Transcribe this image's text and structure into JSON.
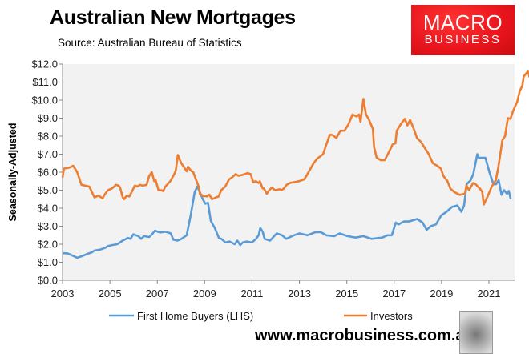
{
  "header": {
    "title": "Australian New Mortgages",
    "subtitle": "Source: Australian Bureau of Statistics"
  },
  "logo": {
    "line1": "MACRO",
    "line2": "BUSINESS",
    "color": "#e8141c"
  },
  "footer": {
    "url": "www.macrobusiness.com.au",
    "badge_icon": "wolf-icon"
  },
  "chart_data": {
    "type": "line",
    "title": "Australian New Mortgages",
    "ylabel": "Seasonally-Adjusted",
    "xlim": [
      2003,
      2022.1
    ],
    "ylim": [
      0,
      12
    ],
    "xticks": [
      2003,
      2005,
      2007,
      2009,
      2011,
      2013,
      2015,
      2017,
      2019,
      2021
    ],
    "yticks": [
      "$0.0",
      "$1.0",
      "$2.0",
      "$3.0",
      "$4.0",
      "$5.0",
      "$6.0",
      "$7.0",
      "$8.0",
      "$9.0",
      "$10.0",
      "$11.0",
      "$12.0"
    ],
    "grid": false,
    "legend": "bottom",
    "background": "#f2f2f2",
    "series": [
      {
        "name": "First Home Buyers (LHS)",
        "color": "#5b9bd5",
        "points": [
          [
            2003.0,
            1.5
          ],
          [
            2003.2,
            1.5
          ],
          [
            2003.45,
            1.35
          ],
          [
            2003.62,
            1.25
          ],
          [
            2003.85,
            1.35
          ],
          [
            2004.02,
            1.45
          ],
          [
            2004.24,
            1.55
          ],
          [
            2004.35,
            1.65
          ],
          [
            2004.58,
            1.7
          ],
          [
            2004.8,
            1.8
          ],
          [
            2004.92,
            1.9
          ],
          [
            2005.09,
            1.95
          ],
          [
            2005.31,
            2.0
          ],
          [
            2005.54,
            2.2
          ],
          [
            2005.76,
            2.35
          ],
          [
            2005.87,
            2.3
          ],
          [
            2005.99,
            2.55
          ],
          [
            2006.1,
            2.5
          ],
          [
            2006.2,
            2.45
          ],
          [
            2006.32,
            2.3
          ],
          [
            2006.44,
            2.45
          ],
          [
            2006.66,
            2.4
          ],
          [
            2006.78,
            2.55
          ],
          [
            2006.9,
            2.75
          ],
          [
            2007.12,
            2.65
          ],
          [
            2007.34,
            2.7
          ],
          [
            2007.57,
            2.6
          ],
          [
            2007.68,
            2.25
          ],
          [
            2007.85,
            2.2
          ],
          [
            2008.02,
            2.3
          ],
          [
            2008.24,
            2.5
          ],
          [
            2008.41,
            3.6
          ],
          [
            2008.58,
            4.9
          ],
          [
            2008.69,
            5.2
          ],
          [
            2008.8,
            4.9
          ],
          [
            2008.92,
            4.5
          ],
          [
            2009.03,
            4.25
          ],
          [
            2009.14,
            4.3
          ],
          [
            2009.26,
            3.3
          ],
          [
            2009.43,
            2.9
          ],
          [
            2009.6,
            2.35
          ],
          [
            2009.71,
            2.3
          ],
          [
            2009.88,
            2.1
          ],
          [
            2010.05,
            2.15
          ],
          [
            2010.27,
            2.0
          ],
          [
            2010.38,
            2.2
          ],
          [
            2010.5,
            1.95
          ],
          [
            2010.61,
            2.1
          ],
          [
            2010.78,
            2.15
          ],
          [
            2011.0,
            2.1
          ],
          [
            2011.17,
            2.3
          ],
          [
            2011.28,
            2.5
          ],
          [
            2011.35,
            2.9
          ],
          [
            2011.45,
            2.7
          ],
          [
            2011.53,
            2.3
          ],
          [
            2011.76,
            2.2
          ],
          [
            2012.04,
            2.6
          ],
          [
            2012.27,
            2.5
          ],
          [
            2012.44,
            2.3
          ],
          [
            2012.77,
            2.5
          ],
          [
            2013.0,
            2.6
          ],
          [
            2013.34,
            2.5
          ],
          [
            2013.68,
            2.67
          ],
          [
            2013.9,
            2.67
          ],
          [
            2014.13,
            2.5
          ],
          [
            2014.47,
            2.45
          ],
          [
            2014.7,
            2.6
          ],
          [
            2015.03,
            2.45
          ],
          [
            2015.37,
            2.37
          ],
          [
            2015.7,
            2.45
          ],
          [
            2016.05,
            2.3
          ],
          [
            2016.5,
            2.37
          ],
          [
            2016.72,
            2.5
          ],
          [
            2016.9,
            2.5
          ],
          [
            2017.07,
            3.2
          ],
          [
            2017.18,
            3.1
          ],
          [
            2017.41,
            3.26
          ],
          [
            2017.63,
            3.26
          ],
          [
            2017.97,
            3.4
          ],
          [
            2018.2,
            3.2
          ],
          [
            2018.37,
            2.8
          ],
          [
            2018.54,
            3.0
          ],
          [
            2018.76,
            3.1
          ],
          [
            2018.99,
            3.6
          ],
          [
            2019.21,
            3.8
          ],
          [
            2019.44,
            4.07
          ],
          [
            2019.67,
            4.15
          ],
          [
            2019.84,
            3.8
          ],
          [
            2019.95,
            4.15
          ],
          [
            2020.06,
            5.33
          ],
          [
            2020.23,
            5.55
          ],
          [
            2020.34,
            5.9
          ],
          [
            2020.51,
            7.0
          ],
          [
            2020.57,
            6.8
          ],
          [
            2020.85,
            6.8
          ],
          [
            2021.02,
            6.0
          ],
          [
            2021.19,
            5.33
          ],
          [
            2021.3,
            5.33
          ],
          [
            2021.41,
            5.55
          ],
          [
            2021.53,
            4.74
          ],
          [
            2021.64,
            5.0
          ],
          [
            2021.76,
            4.8
          ],
          [
            2021.84,
            4.96
          ],
          [
            2021.92,
            4.5
          ]
        ]
      },
      {
        "name": "Investors",
        "color": "#ed7d31",
        "points": [
          [
            2003.0,
            5.7
          ],
          [
            2003.06,
            6.2
          ],
          [
            2003.28,
            6.25
          ],
          [
            2003.45,
            6.35
          ],
          [
            2003.62,
            6.0
          ],
          [
            2003.8,
            5.3
          ],
          [
            2003.96,
            5.25
          ],
          [
            2004.13,
            5.2
          ],
          [
            2004.24,
            4.9
          ],
          [
            2004.35,
            4.6
          ],
          [
            2004.52,
            4.7
          ],
          [
            2004.69,
            4.55
          ],
          [
            2004.8,
            4.8
          ],
          [
            2004.92,
            5.0
          ],
          [
            2005.09,
            5.1
          ],
          [
            2005.26,
            5.3
          ],
          [
            2005.37,
            5.25
          ],
          [
            2005.43,
            5.15
          ],
          [
            2005.54,
            4.6
          ],
          [
            2005.6,
            4.5
          ],
          [
            2005.71,
            4.7
          ],
          [
            2005.82,
            4.65
          ],
          [
            2005.94,
            4.95
          ],
          [
            2006.05,
            5.25
          ],
          [
            2006.16,
            5.2
          ],
          [
            2006.27,
            5.3
          ],
          [
            2006.38,
            5.25
          ],
          [
            2006.55,
            5.3
          ],
          [
            2006.66,
            5.8
          ],
          [
            2006.77,
            6.0
          ],
          [
            2006.87,
            5.5
          ],
          [
            2006.93,
            5.55
          ],
          [
            2007.05,
            5.0
          ],
          [
            2007.16,
            5.0
          ],
          [
            2007.25,
            4.95
          ],
          [
            2007.34,
            5.2
          ],
          [
            2007.55,
            5.5
          ],
          [
            2007.72,
            5.9
          ],
          [
            2007.78,
            6.1
          ],
          [
            2007.87,
            6.95
          ],
          [
            2008.01,
            6.5
          ],
          [
            2008.12,
            6.3
          ],
          [
            2008.24,
            6.05
          ],
          [
            2008.3,
            6.3
          ],
          [
            2008.41,
            6.1
          ],
          [
            2008.52,
            6.0
          ],
          [
            2008.63,
            5.6
          ],
          [
            2008.75,
            5.2
          ],
          [
            2008.8,
            4.8
          ],
          [
            2008.92,
            4.7
          ],
          [
            2009.09,
            4.65
          ],
          [
            2009.2,
            4.75
          ],
          [
            2009.31,
            4.5
          ],
          [
            2009.48,
            4.6
          ],
          [
            2009.59,
            4.65
          ],
          [
            2009.7,
            5.0
          ],
          [
            2009.87,
            5.2
          ],
          [
            2010.03,
            5.6
          ],
          [
            2010.15,
            5.7
          ],
          [
            2010.31,
            5.9
          ],
          [
            2010.43,
            5.8
          ],
          [
            2010.6,
            5.85
          ],
          [
            2010.82,
            5.95
          ],
          [
            2010.94,
            5.9
          ],
          [
            2011.05,
            5.45
          ],
          [
            2011.16,
            5.5
          ],
          [
            2011.28,
            5.4
          ],
          [
            2011.33,
            5.5
          ],
          [
            2011.45,
            5.1
          ],
          [
            2011.5,
            5.1
          ],
          [
            2011.62,
            4.8
          ],
          [
            2011.73,
            5.0
          ],
          [
            2011.84,
            5.15
          ],
          [
            2011.96,
            5.0
          ],
          [
            2012.18,
            5.05
          ],
          [
            2012.24,
            5.0
          ],
          [
            2012.35,
            5.1
          ],
          [
            2012.46,
            5.3
          ],
          [
            2012.6,
            5.4
          ],
          [
            2012.98,
            5.5
          ],
          [
            2013.2,
            5.6
          ],
          [
            2013.3,
            5.8
          ],
          [
            2013.6,
            6.5
          ],
          [
            2013.75,
            6.75
          ],
          [
            2014.0,
            7.0
          ],
          [
            2014.1,
            7.4
          ],
          [
            2014.28,
            8.07
          ],
          [
            2014.39,
            8.07
          ],
          [
            2014.56,
            7.9
          ],
          [
            2014.73,
            8.3
          ],
          [
            2014.9,
            8.3
          ],
          [
            2015.07,
            8.65
          ],
          [
            2015.24,
            9.2
          ],
          [
            2015.41,
            9.1
          ],
          [
            2015.52,
            9.2
          ],
          [
            2015.58,
            8.8
          ],
          [
            2015.7,
            10.07
          ],
          [
            2015.81,
            9.2
          ],
          [
            2015.92,
            8.96
          ],
          [
            2016.1,
            8.4
          ],
          [
            2016.15,
            7.4
          ],
          [
            2016.26,
            6.8
          ],
          [
            2016.43,
            6.67
          ],
          [
            2016.6,
            6.67
          ],
          [
            2016.77,
            7.1
          ],
          [
            2016.94,
            7.55
          ],
          [
            2017.05,
            7.6
          ],
          [
            2017.11,
            8.3
          ],
          [
            2017.28,
            8.67
          ],
          [
            2017.45,
            8.96
          ],
          [
            2017.56,
            8.6
          ],
          [
            2017.67,
            8.9
          ],
          [
            2017.84,
            8.37
          ],
          [
            2017.96,
            7.9
          ],
          [
            2018.12,
            7.7
          ],
          [
            2018.3,
            7.33
          ],
          [
            2018.46,
            7.0
          ],
          [
            2018.63,
            6.5
          ],
          [
            2018.8,
            6.37
          ],
          [
            2018.97,
            6.2
          ],
          [
            2019.08,
            5.78
          ],
          [
            2019.25,
            5.5
          ],
          [
            2019.37,
            5.1
          ],
          [
            2019.54,
            4.9
          ],
          [
            2019.76,
            4.74
          ],
          [
            2019.99,
            4.8
          ],
          [
            2020.05,
            5.26
          ],
          [
            2020.16,
            5.0
          ],
          [
            2020.33,
            5.4
          ],
          [
            2020.44,
            5.33
          ],
          [
            2020.61,
            5.1
          ],
          [
            2020.72,
            4.9
          ],
          [
            2020.78,
            4.2
          ],
          [
            2020.95,
            4.67
          ],
          [
            2021.12,
            5.2
          ],
          [
            2021.29,
            5.55
          ],
          [
            2021.4,
            6.3
          ],
          [
            2021.57,
            7.78
          ],
          [
            2021.68,
            8.0
          ],
          [
            2021.8,
            9.0
          ],
          [
            2021.91,
            8.96
          ],
          [
            2022.02,
            9.4
          ],
          [
            2022.19,
            9.9
          ],
          [
            2022.3,
            10.5
          ],
          [
            2022.41,
            10.8
          ],
          [
            2022.47,
            11.3
          ],
          [
            2022.64,
            11.6
          ],
          [
            2022.76,
            11.1
          ],
          [
            2022.81,
            11.2
          ],
          [
            2022.92,
            10.45
          ]
        ]
      }
    ]
  }
}
